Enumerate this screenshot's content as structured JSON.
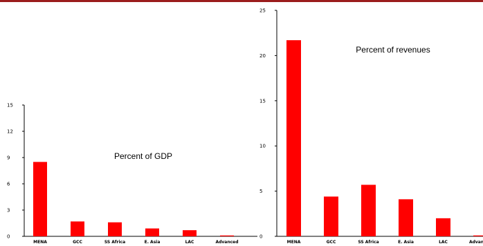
{
  "colors": {
    "top_rule": "#9b1c1c",
    "bar": "#ff0000",
    "axis": "#000000"
  },
  "chart_data": [
    {
      "type": "bar",
      "annotation": "Percent of GDP",
      "categories": [
        "MENA",
        "GCC",
        "SS Africa",
        "E. Asia",
        "LAC",
        "Advanced"
      ],
      "values": [
        8.5,
        1.7,
        1.6,
        0.9,
        0.7,
        0.1
      ],
      "ylim": [
        0,
        15
      ],
      "yticks": [
        0,
        3,
        6,
        9,
        12,
        15
      ],
      "grid": false,
      "legend": "none"
    },
    {
      "type": "bar",
      "annotation": "Percent of revenues",
      "categories": [
        "MENA",
        "GCC",
        "SS Africa",
        "E. Asia",
        "LAC",
        "Advanced"
      ],
      "values": [
        21.7,
        4.4,
        5.7,
        4.1,
        2.0,
        0.1
      ],
      "ylim": [
        0,
        25
      ],
      "yticks": [
        0,
        5,
        10,
        15,
        20,
        25
      ],
      "grid": false,
      "legend": "none"
    }
  ]
}
